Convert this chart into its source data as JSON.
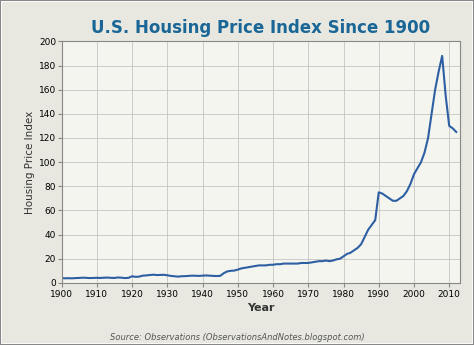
{
  "title": "U.S. Housing Price Index Since 1900",
  "xlabel": "Year",
  "ylabel": "Housing Price Index",
  "source_text": "Source: Observations (ObservationsAndNotes.blogspot.com)",
  "line_color": "#2e5fa3",
  "background_color": "#e8e8e0",
  "plot_bg_color": "#f5f5f0",
  "title_color": "#1a6696",
  "border_color": "#999999",
  "ylim": [
    0,
    200
  ],
  "xlim": [
    1900,
    2013
  ],
  "yticks": [
    0,
    20,
    40,
    60,
    80,
    100,
    120,
    140,
    160,
    180,
    200
  ],
  "xticks": [
    1900,
    1910,
    1920,
    1930,
    1940,
    1950,
    1960,
    1970,
    1980,
    1990,
    2000,
    2010
  ],
  "years": [
    1900,
    1901,
    1902,
    1903,
    1904,
    1905,
    1906,
    1907,
    1908,
    1909,
    1910,
    1911,
    1912,
    1913,
    1914,
    1915,
    1916,
    1917,
    1918,
    1919,
    1920,
    1921,
    1922,
    1923,
    1924,
    1925,
    1926,
    1927,
    1928,
    1929,
    1930,
    1931,
    1932,
    1933,
    1934,
    1935,
    1936,
    1937,
    1938,
    1939,
    1940,
    1941,
    1942,
    1943,
    1944,
    1945,
    1946,
    1947,
    1948,
    1949,
    1950,
    1951,
    1952,
    1953,
    1954,
    1955,
    1956,
    1957,
    1958,
    1959,
    1960,
    1961,
    1962,
    1963,
    1964,
    1965,
    1966,
    1967,
    1968,
    1969,
    1970,
    1971,
    1972,
    1973,
    1974,
    1975,
    1976,
    1977,
    1978,
    1979,
    1980,
    1981,
    1982,
    1983,
    1984,
    1985,
    1986,
    1987,
    1988,
    1989,
    1990,
    1991,
    1992,
    1993,
    1994,
    1995,
    1996,
    1997,
    1998,
    1999,
    2000,
    2001,
    2002,
    2003,
    2004,
    2005,
    2006,
    2007,
    2008,
    2009,
    2010,
    2011,
    2012
  ],
  "values": [
    4.0,
    3.8,
    3.9,
    3.8,
    4.0,
    4.1,
    4.3,
    4.2,
    4.0,
    4.1,
    4.2,
    4.1,
    4.3,
    4.4,
    4.2,
    4.1,
    4.5,
    4.3,
    4.0,
    4.2,
    5.5,
    5.0,
    5.2,
    6.0,
    6.2,
    6.5,
    6.8,
    6.5,
    6.6,
    6.7,
    6.3,
    5.8,
    5.5,
    5.2,
    5.5,
    5.6,
    5.8,
    6.0,
    5.9,
    5.8,
    6.0,
    6.2,
    6.0,
    5.8,
    5.7,
    5.8,
    8.0,
    9.5,
    10.0,
    10.2,
    11.0,
    12.0,
    12.5,
    13.0,
    13.5,
    14.0,
    14.5,
    14.5,
    14.5,
    15.0,
    15.0,
    15.5,
    15.5,
    16.0,
    16.0,
    16.0,
    16.0,
    16.0,
    16.5,
    16.5,
    16.5,
    17.0,
    17.5,
    18.0,
    18.0,
    18.5,
    18.0,
    18.5,
    19.5,
    20.0,
    22.0,
    24.0,
    25.0,
    27.0,
    29.0,
    32.0,
    38.0,
    44.0,
    48.0,
    52.0,
    75.0,
    74.0,
    72.0,
    70.0,
    68.0,
    68.0,
    70.0,
    72.0,
    76.0,
    82.0,
    90.0,
    95.0,
    100.0,
    108.0,
    120.0,
    140.0,
    160.0,
    175.0,
    188.0,
    155.0,
    130.0,
    128.0,
    125.0
  ]
}
